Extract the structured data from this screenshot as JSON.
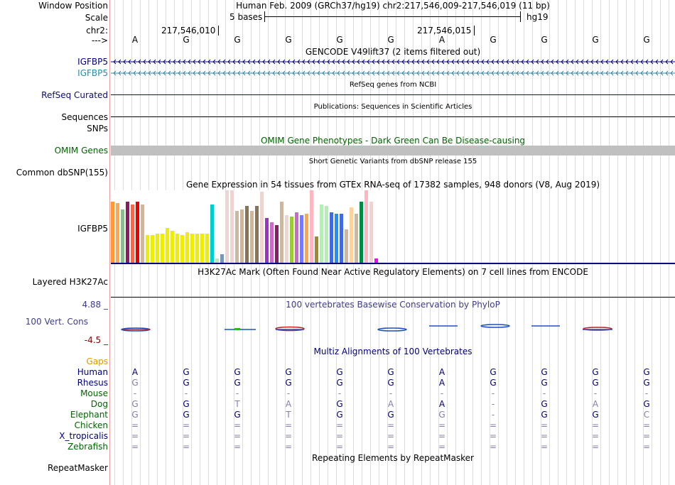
{
  "header": {
    "window_position_label": "Window Position",
    "scale_label": "Scale",
    "chr_label": "chr2:",
    "arrow_label": "--->",
    "assembly_title": "Human Feb. 2009 (GRCh37/hg19)   chr2:217,546,009-217,546,019 (11 bp)",
    "scale_text": "5 bases",
    "db_name": "hg19",
    "coord_1": "217,546,010",
    "coord_2": "217,546,015"
  },
  "reference_bases": [
    "A",
    "G",
    "G",
    "G",
    "G",
    "G",
    "A",
    "G",
    "G",
    "G",
    "G"
  ],
  "tracks": {
    "gencode": {
      "title": "GENCODE V49lift37 (2 items filtered out)",
      "items": [
        {
          "label": "IGFBP5",
          "color": "#00007f"
        },
        {
          "label": "IGFBP5",
          "color": "#2d8aa8"
        }
      ]
    },
    "refseq": {
      "label": "RefSeq Curated",
      "title": "RefSeq genes from NCBI",
      "color": "#0c0c78"
    },
    "publications": {
      "label": "Sequences",
      "title": "Publications: Sequences in Scientific Articles"
    },
    "snps": {
      "label": "SNPs"
    },
    "omim": {
      "label": "OMIM Genes",
      "title": "OMIM Gene Phenotypes - Dark Green Can Be Disease-causing",
      "color": "#006400"
    },
    "dbsnp": {
      "label": "Common dbSNP(155)",
      "title": "Short Genetic Variants from dbSNP release 155"
    },
    "gtex": {
      "label": "IGFBP5",
      "title": "Gene Expression in 54 tissues from GTEx RNA-seq of 17382 samples, 948 donors (V8, Aug 2019)"
    },
    "h3k27ac": {
      "label": "Layered H3K27Ac",
      "title": "H3K27Ac Mark (Often Found Near Active Regulatory Elements) on 7 cell lines from ENCODE"
    },
    "conservation": {
      "label": "100 Vert. Cons",
      "title": "100 vertebrates Basewise Conservation by PhyloP",
      "max_label": "4.88 _",
      "min_label": "-4.5 _",
      "color": "#3c3c8c"
    },
    "multiz": {
      "title": "Multiz Alignments of 100 Vertebrates",
      "gaps_label": "Gaps"
    },
    "repeatmasker": {
      "label": "RepeatMasker",
      "title": "Repeating Elements by RepeatMasker"
    }
  },
  "gtex_bars": [
    {
      "value": 0.84,
      "color": "#ff9933"
    },
    {
      "value": 0.82,
      "color": "#ffa54f"
    },
    {
      "value": 0.74,
      "color": "#8fbc8f"
    },
    {
      "value": 0.84,
      "color": "#8b1c62"
    },
    {
      "value": 0.8,
      "color": "#ee6a50"
    },
    {
      "value": 0.84,
      "color": "#ee0000"
    },
    {
      "value": 0.8,
      "color": "#cdb79e"
    },
    {
      "value": 0.38,
      "color": "#eeee00"
    },
    {
      "value": 0.38,
      "color": "#eeee00"
    },
    {
      "value": 0.4,
      "color": "#eeee00"
    },
    {
      "value": 0.4,
      "color": "#eeee00"
    },
    {
      "value": 0.48,
      "color": "#eeee00"
    },
    {
      "value": 0.44,
      "color": "#eeee00"
    },
    {
      "value": 0.4,
      "color": "#eeee00"
    },
    {
      "value": 0.38,
      "color": "#eeee00"
    },
    {
      "value": 0.42,
      "color": "#eeee00"
    },
    {
      "value": 0.4,
      "color": "#eeee00"
    },
    {
      "value": 0.4,
      "color": "#eeee00"
    },
    {
      "value": 0.4,
      "color": "#eeee00"
    },
    {
      "value": 0.4,
      "color": "#eeee00"
    },
    {
      "value": 0.8,
      "color": "#00cdcd"
    },
    {
      "value": 0.06,
      "color": "#b4eeb4"
    },
    {
      "value": 0.12,
      "color": "#7a96ba"
    },
    {
      "value": 1.0,
      "color": "#eed5d2"
    },
    {
      "value": 1.0,
      "color": "#eed5d2"
    },
    {
      "value": 0.72,
      "color": "#cdb79e"
    },
    {
      "value": 0.74,
      "color": "#cdb79e"
    },
    {
      "value": 0.78,
      "color": "#8b7355"
    },
    {
      "value": 0.72,
      "color": "#cdb79e"
    },
    {
      "value": 0.78,
      "color": "#8b7355"
    },
    {
      "value": 0.98,
      "color": "#eed5d2"
    },
    {
      "value": 0.62,
      "color": "#9a32cd"
    },
    {
      "value": 0.56,
      "color": "#cd69c9"
    },
    {
      "value": 0.52,
      "color": "#8b1c62"
    },
    {
      "value": 0.84,
      "color": "#cdb79e"
    },
    {
      "value": 0.66,
      "color": "#eed5d2"
    },
    {
      "value": 0.64,
      "color": "#9acd32"
    },
    {
      "value": 0.7,
      "color": "#cd69c9"
    },
    {
      "value": 0.66,
      "color": "#7777ff"
    },
    {
      "value": 0.68,
      "color": "#ffa54f"
    },
    {
      "value": 1.0,
      "color": "#ffb6c1"
    },
    {
      "value": 0.36,
      "color": "#a0892f"
    },
    {
      "value": 0.8,
      "color": "#b4eeb4"
    },
    {
      "value": 0.78,
      "color": "#b4eeb4"
    },
    {
      "value": 0.7,
      "color": "#4169e1"
    },
    {
      "value": 0.68,
      "color": "#1e90ff"
    },
    {
      "value": 0.68,
      "color": "#4169e1"
    },
    {
      "value": 0.46,
      "color": "#cdb79e"
    },
    {
      "value": 0.76,
      "color": "#ffd39b"
    },
    {
      "value": 0.68,
      "color": "#cdb79e"
    },
    {
      "value": 0.84,
      "color": "#008b45"
    },
    {
      "value": 1.0,
      "color": "#ffb6c1"
    },
    {
      "value": 0.84,
      "color": "#eed5d2"
    },
    {
      "value": 0.06,
      "color": "#ff00ff"
    }
  ],
  "alignment": [
    {
      "species": "Human",
      "color": "#000080",
      "bases": [
        "A",
        "G",
        "G",
        "G",
        "G",
        "G",
        "A",
        "G",
        "G",
        "G",
        "G"
      ]
    },
    {
      "species": "Rhesus",
      "color": "#000080",
      "bases": [
        "G",
        "G",
        "G",
        "G",
        "G",
        "G",
        "A",
        "G",
        "G",
        "G",
        "G"
      ]
    },
    {
      "species": "Mouse",
      "color": "#006400",
      "bases": [
        "-",
        "-",
        "-",
        "-",
        "-",
        "-",
        "-",
        "-",
        "-",
        "-",
        "-"
      ]
    },
    {
      "species": "Dog",
      "color": "#006400",
      "bases": [
        "G",
        "G",
        "T",
        "A",
        "G",
        "A",
        "A",
        "-",
        "G",
        "A",
        "G"
      ]
    },
    {
      "species": "Elephant",
      "color": "#006400",
      "bases": [
        "G",
        "G",
        "G",
        "T",
        "G",
        "G",
        "G",
        "-",
        "G",
        "G",
        "C"
      ]
    },
    {
      "species": "Chicken",
      "color": "#006400",
      "bases": [
        "=",
        "=",
        "=",
        "=",
        "=",
        "=",
        "=",
        "=",
        "=",
        "=",
        "="
      ]
    },
    {
      "species": "X_tropicalis",
      "color": "#000080",
      "bases": [
        "=",
        "=",
        "=",
        "=",
        "=",
        "=",
        "=",
        "=",
        "=",
        "=",
        "="
      ]
    },
    {
      "species": "Zebrafish",
      "color": "#006400",
      "bases": [
        "=",
        "=",
        "=",
        "=",
        "=",
        "=",
        "=",
        "=",
        "=",
        "=",
        "="
      ]
    }
  ],
  "colors": {
    "gaps": "#e69500",
    "title_navy": "#000080",
    "omim_bar": "#c0c0c0",
    "mismatch": "#8080b0"
  }
}
